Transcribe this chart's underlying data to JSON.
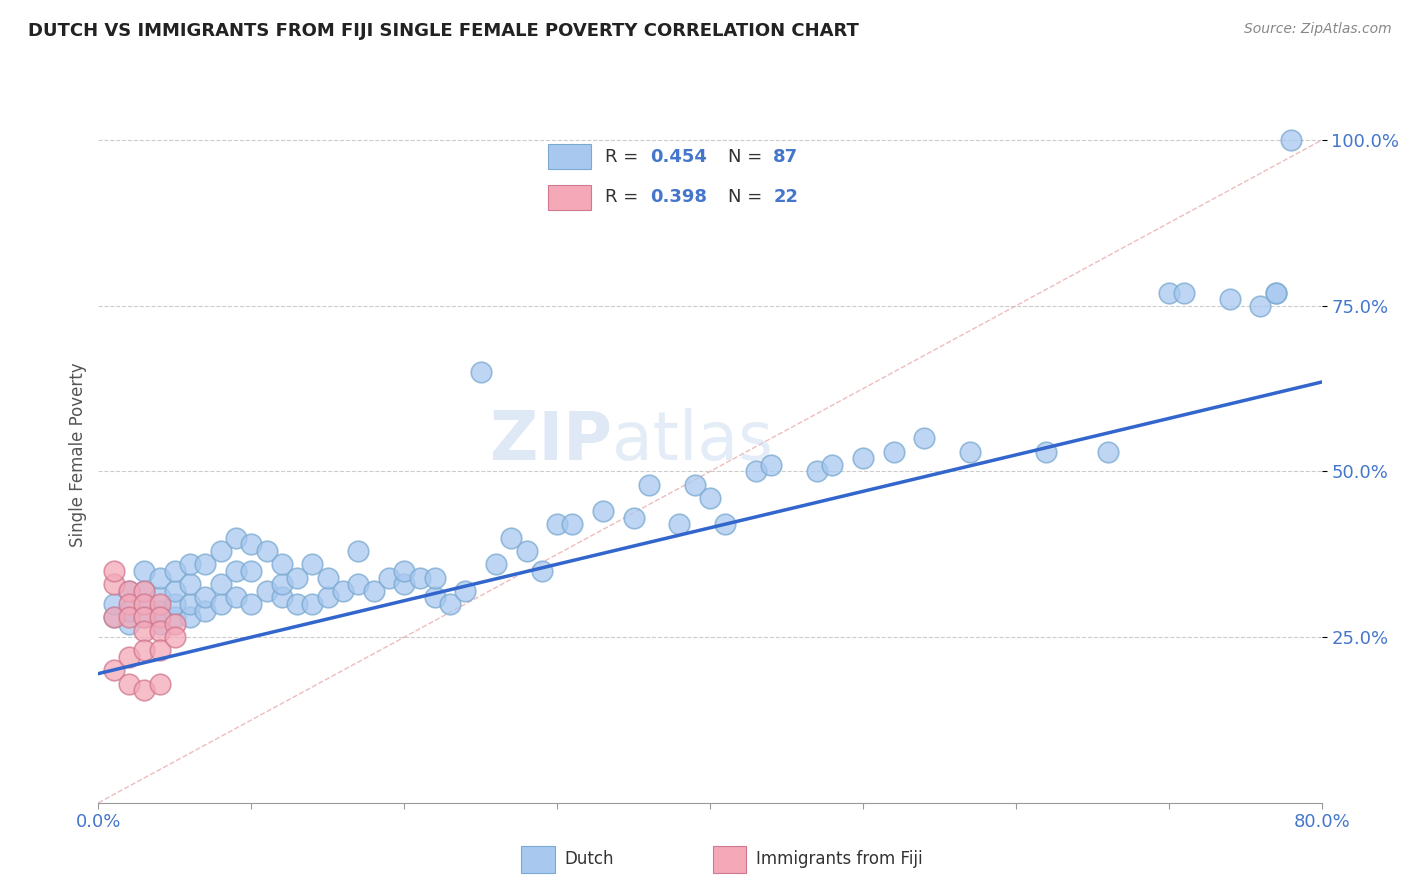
{
  "title": "DUTCH VS IMMIGRANTS FROM FIJI SINGLE FEMALE POVERTY CORRELATION CHART",
  "source": "Source: ZipAtlas.com",
  "ylabel": "Single Female Poverty",
  "xlim": [
    0.0,
    0.8
  ],
  "ylim": [
    0.0,
    1.05
  ],
  "ytick_labels": [
    "25.0%",
    "50.0%",
    "75.0%",
    "100.0%"
  ],
  "ytick_values": [
    0.25,
    0.5,
    0.75,
    1.0
  ],
  "dutch_color": "#a8c8f0",
  "dutch_edge_color": "#7aaad0",
  "fiji_color": "#f4a8b8",
  "fiji_edge_color": "#d07890",
  "dutch_R": 0.454,
  "dutch_N": 87,
  "fiji_R": 0.398,
  "fiji_N": 22,
  "watermark_zip": "ZIP",
  "watermark_atlas": "atlas",
  "legend_dutch": "Dutch",
  "legend_fiji": "Immigrants from Fiji",
  "reg_line_color": "#3366cc",
  "diag_line_color": "#e8a0a0",
  "background_color": "#ffffff",
  "grid_color": "#cccccc",
  "title_color": "#222222",
  "axis_label_color": "#555555",
  "tick_label_color": "#4477cc",
  "source_color": "#888888",
  "dutch_line_x0": 0.0,
  "dutch_line_x1": 0.8,
  "dutch_line_y0": 0.195,
  "dutch_line_y1": 0.635,
  "dutch_x": [
    0.01,
    0.01,
    0.02,
    0.02,
    0.02,
    0.03,
    0.03,
    0.03,
    0.03,
    0.04,
    0.04,
    0.04,
    0.04,
    0.05,
    0.05,
    0.05,
    0.05,
    0.06,
    0.06,
    0.06,
    0.06,
    0.07,
    0.07,
    0.07,
    0.08,
    0.08,
    0.08,
    0.09,
    0.09,
    0.09,
    0.1,
    0.1,
    0.1,
    0.11,
    0.11,
    0.12,
    0.12,
    0.12,
    0.13,
    0.13,
    0.14,
    0.14,
    0.15,
    0.15,
    0.16,
    0.17,
    0.17,
    0.18,
    0.19,
    0.2,
    0.2,
    0.21,
    0.22,
    0.22,
    0.23,
    0.24,
    0.25,
    0.26,
    0.27,
    0.28,
    0.29,
    0.3,
    0.31,
    0.33,
    0.35,
    0.36,
    0.38,
    0.39,
    0.4,
    0.41,
    0.43,
    0.44,
    0.47,
    0.48,
    0.5,
    0.52,
    0.54,
    0.57,
    0.62,
    0.66,
    0.7,
    0.71,
    0.74,
    0.76,
    0.77,
    0.77,
    0.78
  ],
  "dutch_y": [
    0.28,
    0.3,
    0.27,
    0.29,
    0.32,
    0.28,
    0.3,
    0.32,
    0.35,
    0.27,
    0.29,
    0.31,
    0.34,
    0.28,
    0.3,
    0.32,
    0.35,
    0.28,
    0.3,
    0.33,
    0.36,
    0.29,
    0.31,
    0.36,
    0.3,
    0.33,
    0.38,
    0.31,
    0.35,
    0.4,
    0.3,
    0.35,
    0.39,
    0.32,
    0.38,
    0.31,
    0.33,
    0.36,
    0.3,
    0.34,
    0.3,
    0.36,
    0.31,
    0.34,
    0.32,
    0.33,
    0.38,
    0.32,
    0.34,
    0.33,
    0.35,
    0.34,
    0.31,
    0.34,
    0.3,
    0.32,
    0.65,
    0.36,
    0.4,
    0.38,
    0.35,
    0.42,
    0.42,
    0.44,
    0.43,
    0.48,
    0.42,
    0.48,
    0.46,
    0.42,
    0.5,
    0.51,
    0.5,
    0.51,
    0.52,
    0.53,
    0.55,
    0.53,
    0.53,
    0.53,
    0.77,
    0.77,
    0.76,
    0.75,
    0.77,
    0.77,
    1.0
  ],
  "fiji_x": [
    0.01,
    0.01,
    0.01,
    0.01,
    0.02,
    0.02,
    0.02,
    0.02,
    0.02,
    0.03,
    0.03,
    0.03,
    0.03,
    0.03,
    0.03,
    0.04,
    0.04,
    0.04,
    0.04,
    0.04,
    0.05,
    0.05
  ],
  "fiji_y": [
    0.33,
    0.35,
    0.28,
    0.2,
    0.32,
    0.3,
    0.28,
    0.22,
    0.18,
    0.32,
    0.3,
    0.28,
    0.26,
    0.23,
    0.17,
    0.3,
    0.28,
    0.26,
    0.23,
    0.18,
    0.27,
    0.25
  ]
}
